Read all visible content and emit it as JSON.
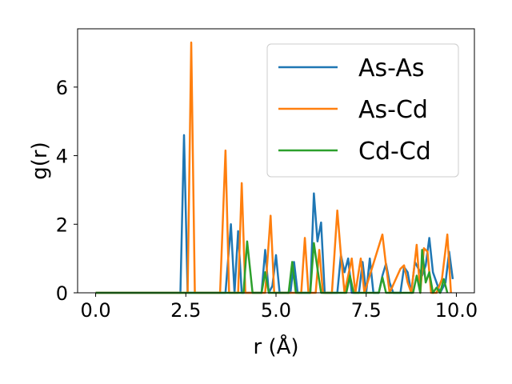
{
  "chart_data": {
    "type": "line",
    "xlabel": "r (Å)",
    "ylabel": "g(r)",
    "xlim": [
      -0.5,
      10.5
    ],
    "ylim": [
      0,
      7.7
    ],
    "xticks": [
      0.0,
      2.5,
      5.0,
      7.5,
      10.0
    ],
    "xtick_labels": [
      "0.0",
      "2.5",
      "5.0",
      "7.5",
      "10.0"
    ],
    "yticks": [
      0,
      2,
      4,
      6
    ],
    "ytick_labels": [
      "0",
      "2",
      "4",
      "6"
    ],
    "grid": false,
    "legend_position": "top-right",
    "series": [
      {
        "name": "As-As",
        "color": "#1f77b4",
        "points": [
          [
            0.0,
            0
          ],
          [
            2.25,
            0
          ],
          [
            2.35,
            0
          ],
          [
            2.45,
            4.6
          ],
          [
            2.55,
            0
          ],
          [
            3.6,
            0
          ],
          [
            3.75,
            2.0
          ],
          [
            3.85,
            0
          ],
          [
            3.95,
            1.8
          ],
          [
            4.05,
            0
          ],
          [
            4.6,
            0
          ],
          [
            4.7,
            1.25
          ],
          [
            4.8,
            0
          ],
          [
            4.9,
            0.2
          ],
          [
            5.0,
            1.1
          ],
          [
            5.1,
            0
          ],
          [
            5.4,
            0
          ],
          [
            5.5,
            0.9
          ],
          [
            5.6,
            0
          ],
          [
            5.95,
            0
          ],
          [
            6.05,
            2.9
          ],
          [
            6.15,
            1.5
          ],
          [
            6.25,
            2.05
          ],
          [
            6.35,
            0
          ],
          [
            6.7,
            0
          ],
          [
            6.8,
            1.1
          ],
          [
            6.9,
            0.6
          ],
          [
            7.0,
            1.0
          ],
          [
            7.1,
            0
          ],
          [
            7.3,
            0
          ],
          [
            7.4,
            0.9
          ],
          [
            7.5,
            0
          ],
          [
            7.6,
            1.0
          ],
          [
            7.7,
            0
          ],
          [
            7.85,
            0
          ],
          [
            7.95,
            0.5
          ],
          [
            8.05,
            0.85
          ],
          [
            8.15,
            0.3
          ],
          [
            8.25,
            0
          ],
          [
            8.45,
            0
          ],
          [
            8.55,
            0.75
          ],
          [
            8.65,
            0.6
          ],
          [
            8.75,
            0
          ],
          [
            8.85,
            0.9
          ],
          [
            8.95,
            0.7
          ],
          [
            9.05,
            0.5
          ],
          [
            9.15,
            0.8
          ],
          [
            9.25,
            1.6
          ],
          [
            9.35,
            0.6
          ],
          [
            9.45,
            0.3
          ],
          [
            9.55,
            0
          ],
          [
            9.7,
            0.3
          ],
          [
            9.8,
            1.2
          ],
          [
            9.9,
            0.4
          ]
        ]
      },
      {
        "name": "As-Cd",
        "color": "#ff7f0e",
        "points": [
          [
            0.0,
            0
          ],
          [
            2.55,
            0
          ],
          [
            2.65,
            7.3
          ],
          [
            2.75,
            0
          ],
          [
            3.45,
            0
          ],
          [
            3.6,
            4.15
          ],
          [
            3.7,
            0
          ],
          [
            3.95,
            0
          ],
          [
            4.05,
            3.2
          ],
          [
            4.15,
            0
          ],
          [
            4.7,
            0
          ],
          [
            4.85,
            2.25
          ],
          [
            4.95,
            0
          ],
          [
            5.7,
            0
          ],
          [
            5.8,
            1.6
          ],
          [
            5.9,
            0
          ],
          [
            6.1,
            0
          ],
          [
            6.2,
            1.25
          ],
          [
            6.3,
            0
          ],
          [
            6.55,
            0
          ],
          [
            6.7,
            2.4
          ],
          [
            6.8,
            1.1
          ],
          [
            6.9,
            0
          ],
          [
            7.1,
            1.0
          ],
          [
            7.2,
            0
          ],
          [
            7.35,
            1.0
          ],
          [
            7.45,
            0
          ],
          [
            7.95,
            1.7
          ],
          [
            8.05,
            0.8
          ],
          [
            8.15,
            0
          ],
          [
            8.45,
            0.7
          ],
          [
            8.55,
            0.8
          ],
          [
            8.65,
            0.3
          ],
          [
            8.75,
            0
          ],
          [
            8.9,
            1.4
          ],
          [
            9.0,
            0
          ],
          [
            9.1,
            1.3
          ],
          [
            9.2,
            1.2
          ],
          [
            9.3,
            0
          ],
          [
            9.45,
            0
          ],
          [
            9.6,
            0.4
          ],
          [
            9.75,
            1.7
          ],
          [
            9.85,
            0
          ]
        ]
      },
      {
        "name": "Cd-Cd",
        "color": "#2ca02c",
        "points": [
          [
            0.0,
            0
          ],
          [
            4.1,
            0
          ],
          [
            4.2,
            1.5
          ],
          [
            4.35,
            0
          ],
          [
            4.6,
            0
          ],
          [
            4.7,
            0.6
          ],
          [
            4.8,
            0
          ],
          [
            5.35,
            0
          ],
          [
            5.45,
            0.9
          ],
          [
            5.55,
            0
          ],
          [
            5.95,
            0
          ],
          [
            6.05,
            1.45
          ],
          [
            6.15,
            0.7
          ],
          [
            6.25,
            0
          ],
          [
            6.95,
            0
          ],
          [
            7.05,
            0.5
          ],
          [
            7.15,
            0
          ],
          [
            7.85,
            0
          ],
          [
            7.95,
            0.45
          ],
          [
            8.05,
            0
          ],
          [
            8.8,
            0
          ],
          [
            8.9,
            0.5
          ],
          [
            9.0,
            0
          ],
          [
            9.05,
            1.25
          ],
          [
            9.15,
            0.3
          ],
          [
            9.25,
            0.6
          ],
          [
            9.35,
            0
          ],
          [
            9.45,
            0.15
          ],
          [
            9.55,
            0
          ],
          [
            9.65,
            0.4
          ],
          [
            9.75,
            0
          ]
        ]
      }
    ]
  }
}
